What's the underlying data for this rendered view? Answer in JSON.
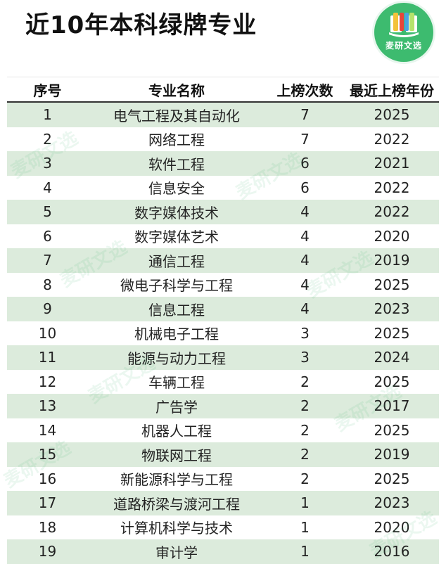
{
  "title": "近10年本科绿牌专业",
  "logo": {
    "text": "麦研文选",
    "color": "#3dbb6f"
  },
  "watermark": "麦研文选",
  "columns": [
    "序号",
    "专业名称",
    "上榜次数",
    "最近上榜年份"
  ],
  "rows": [
    {
      "no": "1",
      "name": "电气工程及其自动化",
      "count": "7",
      "year": "2025"
    },
    {
      "no": "2",
      "name": "网络工程",
      "count": "7",
      "year": "2022"
    },
    {
      "no": "3",
      "name": "软件工程",
      "count": "6",
      "year": "2021"
    },
    {
      "no": "4",
      "name": "信息安全",
      "count": "6",
      "year": "2022"
    },
    {
      "no": "5",
      "name": "数字媒体技术",
      "count": "4",
      "year": "2022"
    },
    {
      "no": "6",
      "name": "数字媒体艺术",
      "count": "4",
      "year": "2020"
    },
    {
      "no": "7",
      "name": "通信工程",
      "count": "4",
      "year": "2019"
    },
    {
      "no": "8",
      "name": "微电子科学与工程",
      "count": "4",
      "year": "2025"
    },
    {
      "no": "9",
      "name": "信息工程",
      "count": "4",
      "year": "2023"
    },
    {
      "no": "10",
      "name": "机械电子工程",
      "count": "3",
      "year": "2025"
    },
    {
      "no": "11",
      "name": "能源与动力工程",
      "count": "3",
      "year": "2024"
    },
    {
      "no": "12",
      "name": "车辆工程",
      "count": "2",
      "year": "2025"
    },
    {
      "no": "13",
      "name": "广告学",
      "count": "2",
      "year": "2017"
    },
    {
      "no": "14",
      "name": "机器人工程",
      "count": "2",
      "year": "2025"
    },
    {
      "no": "15",
      "name": "物联网工程",
      "count": "2",
      "year": "2019"
    },
    {
      "no": "16",
      "name": "新能源科学与工程",
      "count": "2",
      "year": "2025"
    },
    {
      "no": "17",
      "name": "道路桥梁与渡河工程",
      "count": "1",
      "year": "2023"
    },
    {
      "no": "18",
      "name": "计算机科学与技术",
      "count": "1",
      "year": "2020"
    },
    {
      "no": "19",
      "name": "审计学",
      "count": "1",
      "year": "2016"
    }
  ]
}
